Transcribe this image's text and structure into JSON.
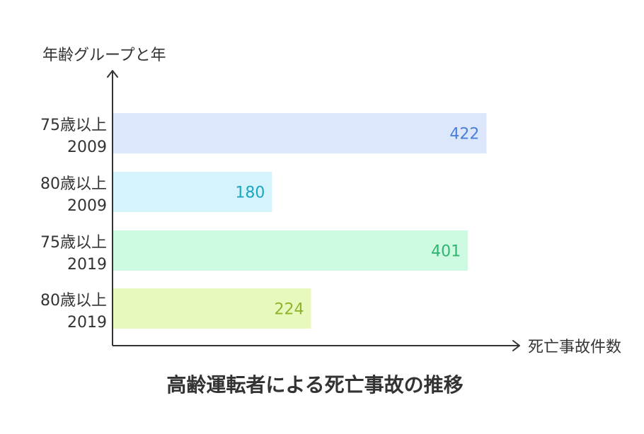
{
  "chart_data": {
    "type": "bar",
    "orientation": "horizontal",
    "title": "高齢運転者による死亡事故の推移",
    "xlabel": "死亡事故件数",
    "ylabel": "年齢グループと年",
    "categories": [
      [
        "75歳以上",
        "2009"
      ],
      [
        "80歳以上",
        "2009"
      ],
      [
        "75歳以上",
        "2019"
      ],
      [
        "80歳以上",
        "2019"
      ]
    ],
    "values": [
      422,
      180,
      401,
      224
    ],
    "xlim": [
      0,
      460
    ],
    "grid": false,
    "legend": "none",
    "bar_colors": [
      "#dce7fb",
      "#d5f3fb",
      "#cdfae1",
      "#e8f9bd"
    ],
    "label_colors": [
      "#4a80d8",
      "#1ca6c2",
      "#2fb56f",
      "#8cb52a"
    ],
    "axis_color": "#333333"
  }
}
